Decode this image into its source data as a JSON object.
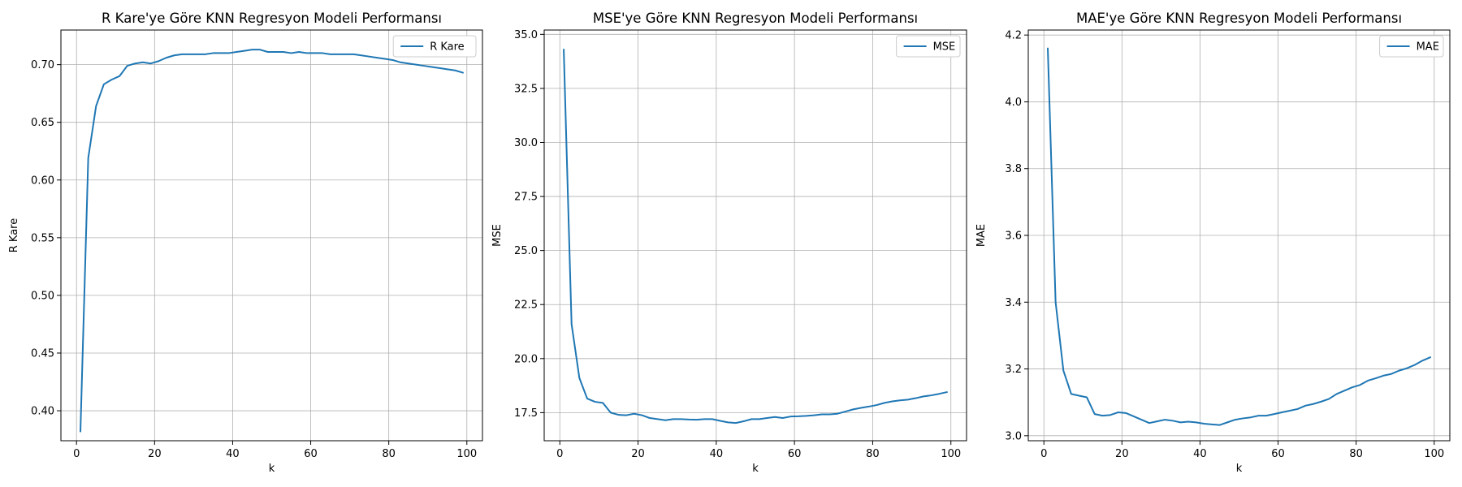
{
  "chart_data": [
    {
      "type": "line",
      "title": "R Kare'ye Göre KNN Regresyon Modeli Performansı",
      "xlabel": "k",
      "ylabel": "R Kare",
      "xlim": [
        -4,
        104
      ],
      "ylim": [
        0.374,
        0.73
      ],
      "xticks": [
        0,
        20,
        40,
        60,
        80,
        100
      ],
      "xtick_labels": [
        "0",
        "20",
        "40",
        "60",
        "80",
        "100"
      ],
      "yticks": [
        0.4,
        0.45,
        0.5,
        0.55,
        0.6,
        0.65,
        0.7
      ],
      "ytick_labels": [
        "0.40",
        "0.45",
        "0.50",
        "0.55",
        "0.60",
        "0.65",
        "0.70"
      ],
      "grid": true,
      "legend_position": "top-right",
      "color": "#1f77b4",
      "series": [
        {
          "name": "R Kare",
          "x": [
            1,
            3,
            5,
            7,
            9,
            11,
            13,
            15,
            17,
            19,
            21,
            23,
            25,
            27,
            29,
            31,
            33,
            35,
            37,
            39,
            41,
            43,
            45,
            47,
            49,
            51,
            53,
            55,
            57,
            59,
            61,
            63,
            65,
            67,
            69,
            71,
            73,
            75,
            77,
            79,
            81,
            83,
            85,
            87,
            89,
            91,
            93,
            95,
            97,
            99
          ],
          "values": [
            0.382,
            0.619,
            0.664,
            0.683,
            0.687,
            0.69,
            0.699,
            0.701,
            0.702,
            0.701,
            0.703,
            0.706,
            0.708,
            0.709,
            0.709,
            0.709,
            0.709,
            0.71,
            0.71,
            0.71,
            0.711,
            0.712,
            0.713,
            0.713,
            0.711,
            0.711,
            0.711,
            0.71,
            0.711,
            0.71,
            0.71,
            0.71,
            0.709,
            0.709,
            0.709,
            0.709,
            0.708,
            0.707,
            0.706,
            0.705,
            0.704,
            0.702,
            0.701,
            0.7,
            0.699,
            0.698,
            0.697,
            0.696,
            0.695,
            0.693
          ]
        }
      ]
    },
    {
      "type": "line",
      "title": "MSE'ye Göre KNN Regresyon Modeli Performansı",
      "xlabel": "k",
      "ylabel": "MSE",
      "xlim": [
        -4,
        104
      ],
      "ylim": [
        16.2,
        35.2
      ],
      "xticks": [
        0,
        20,
        40,
        60,
        80,
        100
      ],
      "xtick_labels": [
        "0",
        "20",
        "40",
        "60",
        "80",
        "100"
      ],
      "yticks": [
        17.5,
        20.0,
        22.5,
        25.0,
        27.5,
        30.0,
        32.5,
        35.0
      ],
      "ytick_labels": [
        "17.5",
        "20.0",
        "22.5",
        "25.0",
        "27.5",
        "30.0",
        "32.5",
        "35.0"
      ],
      "grid": true,
      "legend_position": "top-right",
      "color": "#1f77b4",
      "series": [
        {
          "name": "MSE",
          "x": [
            1,
            3,
            5,
            7,
            9,
            11,
            13,
            15,
            17,
            19,
            21,
            23,
            25,
            27,
            29,
            31,
            33,
            35,
            37,
            39,
            41,
            43,
            45,
            47,
            49,
            51,
            53,
            55,
            57,
            59,
            61,
            63,
            65,
            67,
            69,
            71,
            73,
            75,
            77,
            79,
            81,
            83,
            85,
            87,
            89,
            91,
            93,
            95,
            97,
            99
          ],
          "values": [
            34.3,
            21.6,
            19.1,
            18.15,
            18.0,
            17.95,
            17.5,
            17.4,
            17.38,
            17.45,
            17.38,
            17.25,
            17.2,
            17.15,
            17.2,
            17.2,
            17.18,
            17.17,
            17.2,
            17.2,
            17.12,
            17.05,
            17.02,
            17.1,
            17.2,
            17.2,
            17.25,
            17.3,
            17.25,
            17.32,
            17.33,
            17.35,
            17.38,
            17.42,
            17.42,
            17.45,
            17.55,
            17.65,
            17.72,
            17.78,
            17.85,
            17.95,
            18.02,
            18.07,
            18.1,
            18.17,
            18.25,
            18.3,
            18.37,
            18.45
          ]
        }
      ]
    },
    {
      "type": "line",
      "title": "MAE'ye Göre KNN Regresyon Modeli Performansı",
      "xlabel": "k",
      "ylabel": "MAE",
      "xlim": [
        -4,
        104
      ],
      "ylim": [
        2.985,
        4.215
      ],
      "xticks": [
        0,
        20,
        40,
        60,
        80,
        100
      ],
      "xtick_labels": [
        "0",
        "20",
        "40",
        "60",
        "80",
        "100"
      ],
      "yticks": [
        3.0,
        3.2,
        3.4,
        3.6,
        3.8,
        4.0,
        4.2
      ],
      "ytick_labels": [
        "3.0",
        "3.2",
        "3.4",
        "3.6",
        "3.8",
        "4.0",
        "4.2"
      ],
      "grid": true,
      "legend_position": "top-right",
      "color": "#1f77b4",
      "series": [
        {
          "name": "MAE",
          "x": [
            1,
            3,
            5,
            7,
            9,
            11,
            13,
            15,
            17,
            19,
            21,
            23,
            25,
            27,
            29,
            31,
            33,
            35,
            37,
            39,
            41,
            43,
            45,
            47,
            49,
            51,
            53,
            55,
            57,
            59,
            61,
            63,
            65,
            67,
            69,
            71,
            73,
            75,
            77,
            79,
            81,
            83,
            85,
            87,
            89,
            91,
            93,
            95,
            97,
            99
          ],
          "values": [
            4.16,
            3.4,
            3.195,
            3.125,
            3.12,
            3.115,
            3.065,
            3.06,
            3.062,
            3.07,
            3.068,
            3.058,
            3.048,
            3.038,
            3.043,
            3.048,
            3.045,
            3.04,
            3.042,
            3.04,
            3.036,
            3.034,
            3.032,
            3.04,
            3.048,
            3.052,
            3.055,
            3.06,
            3.06,
            3.065,
            3.07,
            3.075,
            3.08,
            3.09,
            3.095,
            3.102,
            3.11,
            3.125,
            3.135,
            3.145,
            3.152,
            3.165,
            3.172,
            3.18,
            3.185,
            3.195,
            3.202,
            3.212,
            3.225,
            3.235
          ]
        }
      ]
    }
  ]
}
